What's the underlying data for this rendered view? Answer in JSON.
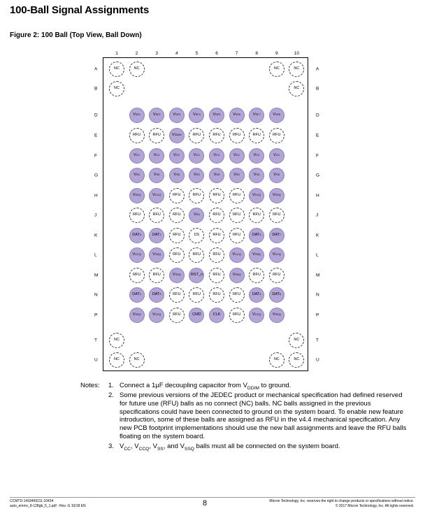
{
  "header": {
    "title": "100-Ball Signal Assignments",
    "figure_title": "Figure 2: 100 Ball (Top View, Ball Down)"
  },
  "colors": {
    "filled": "#b3a6d6",
    "outline": "#333333"
  },
  "columns": [
    "1",
    "2",
    "3",
    "4",
    "5",
    "6",
    "7",
    "8",
    "9",
    "10"
  ],
  "row_labels": [
    "A",
    "B",
    "D",
    "E",
    "F",
    "G",
    "H",
    "J",
    "K",
    "L",
    "M",
    "N",
    "P",
    "T",
    "U"
  ],
  "balls": [
    {
      "row": "A",
      "col": 1,
      "label": "NC",
      "filled": false
    },
    {
      "row": "A",
      "col": 2,
      "label": "NC",
      "filled": false
    },
    {
      "row": "A",
      "col": 9,
      "label": "NC",
      "filled": false
    },
    {
      "row": "A",
      "col": 10,
      "label": "NC",
      "filled": false
    },
    {
      "row": "B",
      "col": 1,
      "label": "NC",
      "filled": false
    },
    {
      "row": "B",
      "col": 10,
      "label": "NC",
      "filled": false
    },
    {
      "row": "D",
      "col": 2,
      "label": "VSF1",
      "filled": true
    },
    {
      "row": "D",
      "col": 3,
      "label": "VSF2",
      "filled": true
    },
    {
      "row": "D",
      "col": 4,
      "label": "VSF3",
      "filled": true
    },
    {
      "row": "D",
      "col": 5,
      "label": "VSF4",
      "filled": true
    },
    {
      "row": "D",
      "col": 6,
      "label": "VSF5",
      "filled": true
    },
    {
      "row": "D",
      "col": 7,
      "label": "VSF6",
      "filled": true
    },
    {
      "row": "D",
      "col": 8,
      "label": "VSF7",
      "filled": true
    },
    {
      "row": "D",
      "col": 9,
      "label": "VSF8",
      "filled": true
    },
    {
      "row": "E",
      "col": 2,
      "label": "RFU",
      "filled": false
    },
    {
      "row": "E",
      "col": 3,
      "label": "RFU",
      "filled": false
    },
    {
      "row": "E",
      "col": 4,
      "label": "VDDIM",
      "filled": true
    },
    {
      "row": "E",
      "col": 5,
      "label": "RFU",
      "filled": false
    },
    {
      "row": "E",
      "col": 6,
      "label": "RFU",
      "filled": false
    },
    {
      "row": "E",
      "col": 7,
      "label": "RFU",
      "filled": false
    },
    {
      "row": "E",
      "col": 8,
      "label": "RFU",
      "filled": false
    },
    {
      "row": "E",
      "col": 9,
      "label": "RFU",
      "filled": false
    },
    {
      "row": "F",
      "col": 2,
      "label": "VCC",
      "filled": true
    },
    {
      "row": "F",
      "col": 3,
      "label": "VCC",
      "filled": true
    },
    {
      "row": "F",
      "col": 4,
      "label": "VCC",
      "filled": true
    },
    {
      "row": "F",
      "col": 5,
      "label": "VCC",
      "filled": true
    },
    {
      "row": "F",
      "col": 6,
      "label": "VCC",
      "filled": true
    },
    {
      "row": "F",
      "col": 7,
      "label": "VCC",
      "filled": true
    },
    {
      "row": "F",
      "col": 8,
      "label": "VCC",
      "filled": true
    },
    {
      "row": "F",
      "col": 9,
      "label": "VCC",
      "filled": true
    },
    {
      "row": "G",
      "col": 2,
      "label": "VSS",
      "filled": true
    },
    {
      "row": "G",
      "col": 3,
      "label": "VSS",
      "filled": true
    },
    {
      "row": "G",
      "col": 4,
      "label": "VSS",
      "filled": true
    },
    {
      "row": "G",
      "col": 5,
      "label": "VSS",
      "filled": true
    },
    {
      "row": "G",
      "col": 6,
      "label": "VSS",
      "filled": true
    },
    {
      "row": "G",
      "col": 7,
      "label": "VSS",
      "filled": true
    },
    {
      "row": "G",
      "col": 8,
      "label": "VSS",
      "filled": true
    },
    {
      "row": "G",
      "col": 9,
      "label": "VSS",
      "filled": true
    },
    {
      "row": "H",
      "col": 2,
      "label": "VSSQ",
      "filled": true
    },
    {
      "row": "H",
      "col": 3,
      "label": "VCCQ",
      "filled": true
    },
    {
      "row": "H",
      "col": 4,
      "label": "RFU",
      "filled": false
    },
    {
      "row": "H",
      "col": 5,
      "label": "RFU",
      "filled": false
    },
    {
      "row": "H",
      "col": 6,
      "label": "RFU",
      "filled": false
    },
    {
      "row": "H",
      "col": 7,
      "label": "RFU",
      "filled": false
    },
    {
      "row": "H",
      "col": 8,
      "label": "VCCQ",
      "filled": true
    },
    {
      "row": "H",
      "col": 9,
      "label": "VSSQ",
      "filled": true
    },
    {
      "row": "J",
      "col": 2,
      "label": "RFU",
      "filled": false
    },
    {
      "row": "J",
      "col": 3,
      "label": "RFU",
      "filled": false
    },
    {
      "row": "J",
      "col": 4,
      "label": "RFU",
      "filled": false
    },
    {
      "row": "J",
      "col": 5,
      "label": "VSS",
      "filled": true
    },
    {
      "row": "J",
      "col": 6,
      "label": "RFU",
      "filled": false
    },
    {
      "row": "J",
      "col": 7,
      "label": "RFU",
      "filled": false
    },
    {
      "row": "J",
      "col": 8,
      "label": "RFU",
      "filled": false
    },
    {
      "row": "J",
      "col": 9,
      "label": "RFU",
      "filled": false
    },
    {
      "row": "K",
      "col": 2,
      "label": "DAT0",
      "filled": true
    },
    {
      "row": "K",
      "col": 3,
      "label": "DAT2",
      "filled": true
    },
    {
      "row": "K",
      "col": 4,
      "label": "RFU",
      "filled": false
    },
    {
      "row": "K",
      "col": 5,
      "label": "DS",
      "filled": false
    },
    {
      "row": "K",
      "col": 6,
      "label": "RFU",
      "filled": false
    },
    {
      "row": "K",
      "col": 7,
      "label": "RFU",
      "filled": false
    },
    {
      "row": "K",
      "col": 8,
      "label": "DAT5",
      "filled": true
    },
    {
      "row": "K",
      "col": 9,
      "label": "DAT7",
      "filled": true
    },
    {
      "row": "L",
      "col": 2,
      "label": "VCCQ",
      "filled": true
    },
    {
      "row": "L",
      "col": 3,
      "label": "VSSQ",
      "filled": true
    },
    {
      "row": "L",
      "col": 4,
      "label": "RFU",
      "filled": false
    },
    {
      "row": "L",
      "col": 5,
      "label": "RFU",
      "filled": false
    },
    {
      "row": "L",
      "col": 6,
      "label": "RFU",
      "filled": false
    },
    {
      "row": "L",
      "col": 7,
      "label": "VCCQ",
      "filled": true
    },
    {
      "row": "L",
      "col": 8,
      "label": "VSSQ",
      "filled": true
    },
    {
      "row": "L",
      "col": 9,
      "label": "VCCQ",
      "filled": true
    },
    {
      "row": "M",
      "col": 2,
      "label": "RFU",
      "filled": false
    },
    {
      "row": "M",
      "col": 3,
      "label": "RFU",
      "filled": false
    },
    {
      "row": "M",
      "col": 4,
      "label": "VSSQ",
      "filled": true
    },
    {
      "row": "M",
      "col": 5,
      "label": "RST_n",
      "filled": true
    },
    {
      "row": "M",
      "col": 6,
      "label": "RFU",
      "filled": false
    },
    {
      "row": "M",
      "col": 7,
      "label": "VSSQ",
      "filled": true
    },
    {
      "row": "M",
      "col": 8,
      "label": "RFU",
      "filled": false
    },
    {
      "row": "M",
      "col": 9,
      "label": "RFU",
      "filled": false
    },
    {
      "row": "N",
      "col": 2,
      "label": "DAT1",
      "filled": true
    },
    {
      "row": "N",
      "col": 3,
      "label": "DAT3",
      "filled": true
    },
    {
      "row": "N",
      "col": 4,
      "label": "RFU",
      "filled": false
    },
    {
      "row": "N",
      "col": 5,
      "label": "RFU",
      "filled": false
    },
    {
      "row": "N",
      "col": 6,
      "label": "RFU",
      "filled": false
    },
    {
      "row": "N",
      "col": 7,
      "label": "RFU",
      "filled": false
    },
    {
      "row": "N",
      "col": 8,
      "label": "DAT4",
      "filled": true
    },
    {
      "row": "N",
      "col": 9,
      "label": "DAT6",
      "filled": true
    },
    {
      "row": "P",
      "col": 2,
      "label": "VSSQ",
      "filled": true
    },
    {
      "row": "P",
      "col": 3,
      "label": "VCCQ",
      "filled": true
    },
    {
      "row": "P",
      "col": 4,
      "label": "RFU",
      "filled": false
    },
    {
      "row": "P",
      "col": 5,
      "label": "CMD",
      "filled": true
    },
    {
      "row": "P",
      "col": 6,
      "label": "CLK",
      "filled": true
    },
    {
      "row": "P",
      "col": 7,
      "label": "RFU",
      "filled": false
    },
    {
      "row": "P",
      "col": 8,
      "label": "VCCQ",
      "filled": true
    },
    {
      "row": "P",
      "col": 9,
      "label": "VSSQ",
      "filled": true
    },
    {
      "row": "T",
      "col": 1,
      "label": "NC",
      "filled": false
    },
    {
      "row": "T",
      "col": 10,
      "label": "NC",
      "filled": false
    },
    {
      "row": "U",
      "col": 1,
      "label": "NC",
      "filled": false
    },
    {
      "row": "U",
      "col": 2,
      "label": "NC",
      "filled": false
    },
    {
      "row": "U",
      "col": 9,
      "label": "NC",
      "filled": false
    },
    {
      "row": "U",
      "col": 10,
      "label": "NC",
      "filled": false
    }
  ],
  "notes": {
    "heading": "Notes:",
    "items": [
      {
        "num": "1.",
        "text": "Connect a 1µF decoupling capacitor from VDDIM to ground."
      },
      {
        "num": "2.",
        "text": "Some previous versions of the JEDEC product or mechanical specification had defined reserved for future use (RFU) balls as no connect (NC) balls. NC balls assigned in the previous specifications could have been connected to ground on the system board. To enable new feature introduction, some of these balls are assigned as RFU in the v4.4 mechanical specification. Any new PCB footprint implementations should use the new ball assignments and leave the RFU balls floating on the system board."
      },
      {
        "num": "3.",
        "text": "VCC, VCCQ, VSS, and VSSQ balls must all be connected on the system board."
      }
    ]
  },
  "footer": {
    "left_line1": "CCMTD-1418469111-10434",
    "left_line2": "auto_emmc_8-128gb_5_1.pdf - Rev. G 10/18 EN",
    "page": "8",
    "right_line1": "Micron Technology, Inc. reserves the right to change products or specifications without notice.",
    "right_line2": "© 2017 Micron Technology, Inc. All rights reserved."
  }
}
